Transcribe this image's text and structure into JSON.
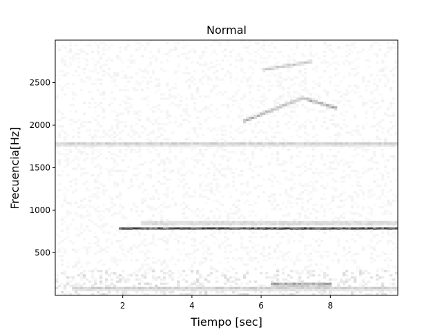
{
  "chart_data": {
    "type": "heatmap",
    "title": "Normal",
    "xlabel": "Tiempo [sec]",
    "ylabel": "Frecuencia[Hz]",
    "xlim": [
      0.05,
      9.95
    ],
    "ylim": [
      0,
      3000
    ],
    "xticks": [
      2,
      4,
      6,
      8
    ],
    "xtick_labels": [
      "2",
      "4",
      "6",
      "8"
    ],
    "yticks": [
      500,
      1000,
      1500,
      2000,
      2500
    ],
    "ytick_labels": [
      "500",
      "1000",
      "1500",
      "2000",
      "2500"
    ],
    "colormap": "Greys",
    "grid": false,
    "features": [
      {
        "desc": "horizontal tonal line",
        "freq": 790,
        "t_start": 1.9,
        "t_end": 9.95,
        "intensity": 0.85
      },
      {
        "desc": "faint harmonic band",
        "freq": 850,
        "t_start": 2.5,
        "t_end": 9.95,
        "intensity": 0.3
      },
      {
        "desc": "low frequency energy",
        "freq": 130,
        "t_start": 6.3,
        "t_end": 8.0,
        "intensity": 0.55
      },
      {
        "desc": "low frequency energy",
        "freq": 80,
        "t_start": 0.5,
        "t_end": 9.95,
        "intensity": 0.3
      },
      {
        "desc": "weak band",
        "freq": 1780,
        "t_start": 0.05,
        "t_end": 9.95,
        "intensity": 0.3
      },
      {
        "desc": "faint sweep",
        "freq_start": 2050,
        "freq_end": 2320,
        "t_start": 5.5,
        "t_end": 7.2,
        "intensity": 0.4
      },
      {
        "desc": "faint sweep",
        "freq_start": 2320,
        "freq_end": 2200,
        "t_start": 7.2,
        "t_end": 8.2,
        "intensity": 0.45
      },
      {
        "desc": "faint sweep",
        "freq_start": 2650,
        "freq_end": 2750,
        "t_start": 6.0,
        "t_end": 7.5,
        "intensity": 0.3
      }
    ]
  }
}
